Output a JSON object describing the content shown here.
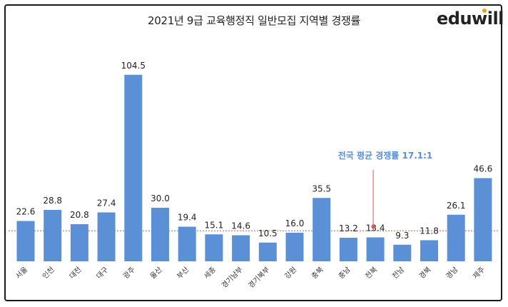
{
  "logo_text": "eduwill",
  "chart_data": {
    "type": "bar",
    "title": "2021년 9급 교육행정직 일반모집 지역별 경쟁률",
    "categories": [
      "서울",
      "인천",
      "대전",
      "대구",
      "광주",
      "울산",
      "부산",
      "세종",
      "경기남부",
      "경기북부",
      "강원",
      "충북",
      "충남",
      "전북",
      "전남",
      "경북",
      "경남",
      "제주"
    ],
    "values": [
      22.6,
      28.8,
      20.8,
      27.4,
      104.5,
      30.0,
      19.4,
      15.1,
      14.6,
      10.5,
      16.0,
      35.5,
      13.2,
      13.4,
      9.3,
      11.8,
      26.1,
      46.6
    ],
    "value_labels": [
      "22.6",
      "28.8",
      "20.8",
      "27.4",
      "104.5",
      "30.0",
      "19.4",
      "15.1",
      "14.6",
      "10.5",
      "16.0",
      "35.5",
      "13.2",
      "13.4",
      "9.3",
      "11.8",
      "26.1",
      "46.6"
    ],
    "average": {
      "value": 17.1,
      "label": "전국 평균 경쟁률 17.1:1",
      "line_color": "#e05252",
      "arrow_category": "전북"
    },
    "bar_color": "#5b8fd6",
    "ylim": [
      0,
      110
    ],
    "grid": false,
    "legend": "none"
  }
}
